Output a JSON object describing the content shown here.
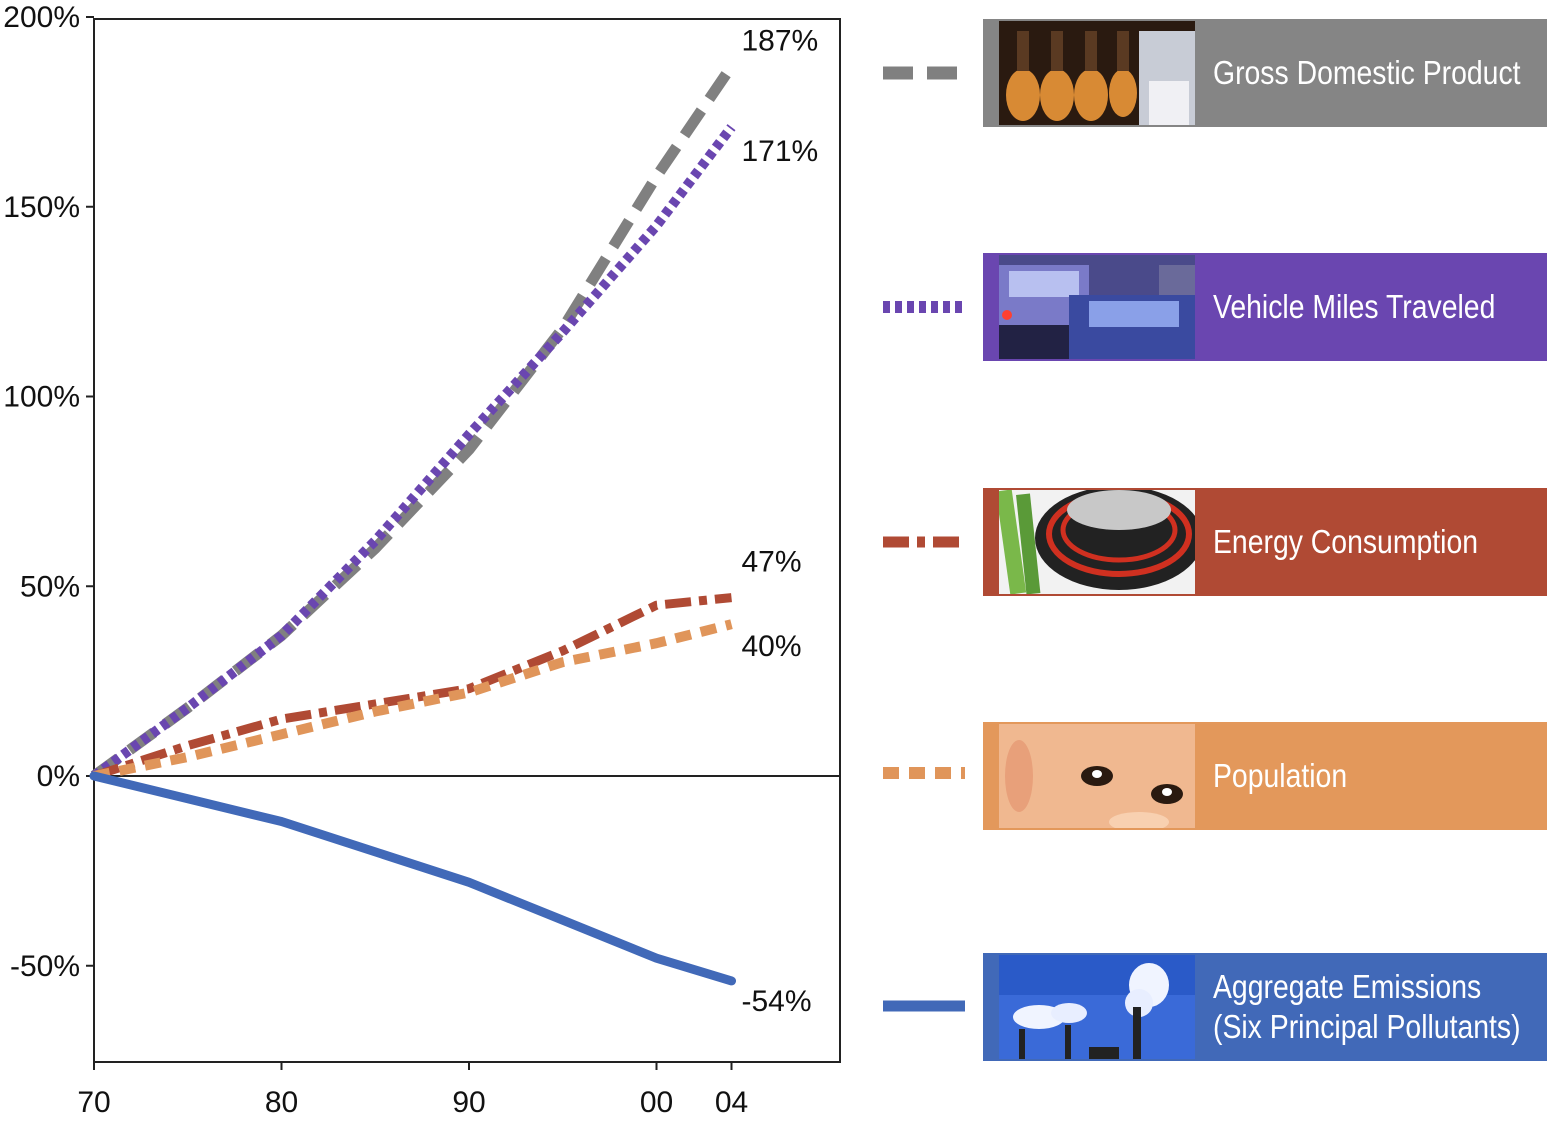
{
  "chart_data": {
    "type": "line",
    "x_ticks": [
      "70",
      "80",
      "90",
      "00",
      "04"
    ],
    "x_values": [
      1970,
      1980,
      1990,
      2000,
      2004
    ],
    "xlim": [
      1970,
      2010
    ],
    "y_ticks": [
      "200%",
      "150%",
      "100%",
      "50%",
      "0%",
      "-50%"
    ],
    "y_tick_values": [
      200,
      150,
      100,
      50,
      0,
      -50
    ],
    "ylim": [
      -75,
      200
    ],
    "grid": false,
    "legend_position": "right",
    "series": [
      {
        "name": "Gross Domestic Product",
        "color": "#808080",
        "dash": "dashed",
        "end_label": "187%",
        "x": [
          1970,
          1975,
          1980,
          1985,
          1990,
          1995,
          2000,
          2004
        ],
        "y": [
          0,
          18,
          37,
          60,
          86,
          118,
          158,
          187
        ]
      },
      {
        "name": "Vehicle Miles Traveled",
        "color": "#6a46b0",
        "dash": "dotted",
        "end_label": "171%",
        "x": [
          1970,
          1975,
          1980,
          1985,
          1990,
          1995,
          2000,
          2004
        ],
        "y": [
          0,
          18,
          37,
          62,
          90,
          117,
          145,
          171
        ]
      },
      {
        "name": "Energy Consumption",
        "color": "#b04a34",
        "dash": "dash-dot",
        "end_label": "47%",
        "x": [
          1970,
          1975,
          1980,
          1985,
          1990,
          1995,
          2000,
          2002,
          2004
        ],
        "y": [
          0,
          8,
          15,
          19,
          23,
          33,
          45,
          46,
          47
        ]
      },
      {
        "name": "Population",
        "color": "#e0955a",
        "dash": "dashed-short",
        "end_label": "40%",
        "x": [
          1970,
          1975,
          1980,
          1985,
          1990,
          1995,
          2000,
          2004
        ],
        "y": [
          0,
          5,
          11,
          17,
          22,
          30,
          35,
          40
        ]
      },
      {
        "name": "Aggregate Emissions (Six Principal Pollutants)",
        "color": "#4169b8",
        "dash": "solid",
        "end_label": "-54%",
        "x": [
          1970,
          1975,
          1980,
          1985,
          1990,
          1995,
          2000,
          2004
        ],
        "y": [
          0,
          -6,
          -12,
          -20,
          -28,
          -38,
          -48,
          -54
        ]
      }
    ]
  },
  "legend": {
    "items": [
      {
        "line1": "Gross Domestic Product",
        "line2": "",
        "bg": "#858585",
        "photo": "bottles-photo-icon"
      },
      {
        "line1": "Vehicle Miles Traveled",
        "line2": "",
        "bg": "#6a46b0",
        "photo": "traffic-photo-icon"
      },
      {
        "line1": "Energy Consumption",
        "line2": "",
        "bg": "#b04a34",
        "photo": "stove-burner-photo-icon"
      },
      {
        "line1": "Population",
        "line2": "",
        "bg": "#e3985b",
        "photo": "baby-face-photo-icon"
      },
      {
        "line1": "Aggregate Emissions",
        "line2": "(Six Principal Pollutants)",
        "bg": "#4169b8",
        "photo": "smokestacks-photo-icon"
      }
    ]
  }
}
